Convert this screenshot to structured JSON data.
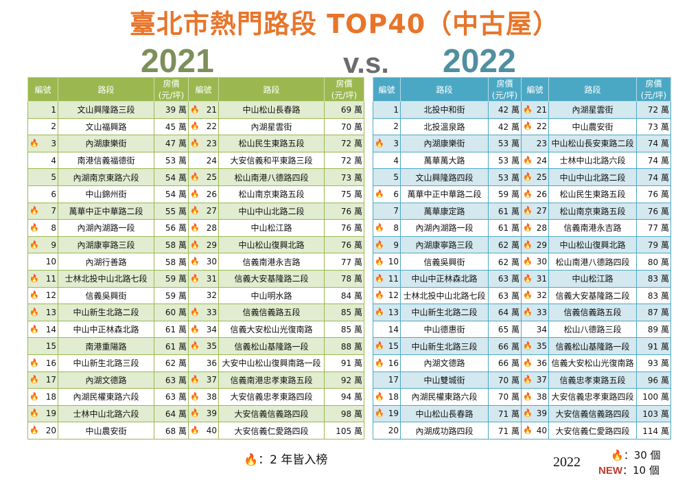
{
  "title": "臺北市熱門路段 TOP40（中古屋）",
  "year_left": "2021",
  "vs": "v.s.",
  "year_right": "2022",
  "headers": {
    "rank": "編號",
    "road": "路段",
    "price_line1": "房價",
    "price_line2": "(元/坪)"
  },
  "icons": {
    "flame": "flame-icon"
  },
  "legend_text": "：2 年皆入榜",
  "stats": {
    "year": "2022",
    "flame_count": "：30 個",
    "new_label": "NEW",
    "new_count": "：10 個"
  },
  "table2021": [
    {
      "l": {
        "r": "1",
        "f": false,
        "n": "文山興隆路三段",
        "p": "39 萬"
      },
      "r": {
        "r": "21",
        "f": true,
        "n": "中山松山長春路",
        "p": "69 萬"
      }
    },
    {
      "l": {
        "r": "2",
        "f": false,
        "n": "文山福興路",
        "p": "45 萬"
      },
      "r": {
        "r": "22",
        "f": true,
        "n": "內湖星雲街",
        "p": "70 萬"
      }
    },
    {
      "l": {
        "r": "3",
        "f": true,
        "n": "內湖康樂街",
        "p": "47 萬"
      },
      "r": {
        "r": "23",
        "f": true,
        "n": "松山民生東路五段",
        "p": "72 萬"
      }
    },
    {
      "l": {
        "r": "4",
        "f": false,
        "n": "南港信義福德街",
        "p": "53 萬"
      },
      "r": {
        "r": "24",
        "f": false,
        "n": "大安信義和平東路三段",
        "p": "72 萬"
      }
    },
    {
      "l": {
        "r": "5",
        "f": false,
        "n": "內湖南京東路六段",
        "p": "54 萬"
      },
      "r": {
        "r": "25",
        "f": true,
        "n": "松山南港八德路四段",
        "p": "73 萬"
      }
    },
    {
      "l": {
        "r": "6",
        "f": false,
        "n": "中山錦州街",
        "p": "54 萬"
      },
      "r": {
        "r": "26",
        "f": true,
        "n": "松山南京東路五段",
        "p": "75 萬"
      }
    },
    {
      "l": {
        "r": "7",
        "f": true,
        "n": "萬華中正中華路二段",
        "p": "55 萬"
      },
      "r": {
        "r": "27",
        "f": true,
        "n": "中山中山北路二段",
        "p": "76 萬"
      }
    },
    {
      "l": {
        "r": "8",
        "f": true,
        "n": "內湖內湖路一段",
        "p": "56 萬"
      },
      "r": {
        "r": "28",
        "f": true,
        "n": "中山松江路",
        "p": "76 萬"
      }
    },
    {
      "l": {
        "r": "9",
        "f": true,
        "n": "內湖康寧路三段",
        "p": "58 萬"
      },
      "r": {
        "r": "29",
        "f": true,
        "n": "中山松山復興北路",
        "p": "76 萬"
      }
    },
    {
      "l": {
        "r": "10",
        "f": false,
        "n": "內湖行善路",
        "p": "58 萬"
      },
      "r": {
        "r": "30",
        "f": true,
        "n": "信義南港永吉路",
        "p": "77 萬"
      }
    },
    {
      "l": {
        "r": "11",
        "f": true,
        "n": "士林北投中山北路七段",
        "p": "59 萬"
      },
      "r": {
        "r": "31",
        "f": true,
        "n": "信義大安基隆路二段",
        "p": "78 萬"
      }
    },
    {
      "l": {
        "r": "12",
        "f": true,
        "n": "信義吳興街",
        "p": "59 萬"
      },
      "r": {
        "r": "32",
        "f": false,
        "n": "中山明水路",
        "p": "84 萬"
      }
    },
    {
      "l": {
        "r": "13",
        "f": true,
        "n": "中山新生北路二段",
        "p": "60 萬"
      },
      "r": {
        "r": "33",
        "f": true,
        "n": "信義信義路五段",
        "p": "85 萬"
      }
    },
    {
      "l": {
        "r": "14",
        "f": true,
        "n": "中山中正林森北路",
        "p": "61 萬"
      },
      "r": {
        "r": "34",
        "f": true,
        "n": "信義大安松山光復南路",
        "p": "85 萬"
      }
    },
    {
      "l": {
        "r": "15",
        "f": false,
        "n": "南港重陽路",
        "p": "61 萬"
      },
      "r": {
        "r": "35",
        "f": true,
        "n": "信義松山基隆路一段",
        "p": "88 萬"
      }
    },
    {
      "l": {
        "r": "16",
        "f": true,
        "n": "中山新生北路三段",
        "p": "62 萬"
      },
      "r": {
        "r": "36",
        "f": false,
        "n": "大安中山松山復興南路一段",
        "p": "91 萬"
      }
    },
    {
      "l": {
        "r": "17",
        "f": true,
        "n": "內湖文德路",
        "p": "63 萬"
      },
      "r": {
        "r": "37",
        "f": true,
        "n": "信義南港忠孝東路五段",
        "p": "92 萬"
      }
    },
    {
      "l": {
        "r": "18",
        "f": true,
        "n": "內湖民權東路六段",
        "p": "63 萬"
      },
      "r": {
        "r": "38",
        "f": true,
        "n": "大安信義忠孝東路四段",
        "p": "94 萬"
      }
    },
    {
      "l": {
        "r": "19",
        "f": true,
        "n": "士林中山北路六段",
        "p": "64 萬"
      },
      "r": {
        "r": "39",
        "f": true,
        "n": "大安信義信義路四段",
        "p": "98 萬"
      }
    },
    {
      "l": {
        "r": "20",
        "f": true,
        "n": "中山農安街",
        "p": "68 萬"
      },
      "r": {
        "r": "40",
        "f": true,
        "n": "大安信義仁愛路四段",
        "p": "105 萬"
      }
    }
  ],
  "table2022": [
    {
      "l": {
        "r": "1",
        "f": false,
        "n": "北投中和街",
        "p": "42 萬"
      },
      "r": {
        "r": "21",
        "f": true,
        "n": "內湖星雲街",
        "p": "72 萬"
      }
    },
    {
      "l": {
        "r": "2",
        "f": false,
        "n": "北投溫泉路",
        "p": "42 萬"
      },
      "r": {
        "r": "22",
        "f": true,
        "n": "中山農安街",
        "p": "73 萬"
      }
    },
    {
      "l": {
        "r": "3",
        "f": true,
        "n": "內湖康樂街",
        "p": "53 萬"
      },
      "r": {
        "r": "23",
        "f": false,
        "n": "中山松山長安東路二段",
        "p": "74 萬"
      }
    },
    {
      "l": {
        "r": "4",
        "f": false,
        "n": "萬華萬大路",
        "p": "53 萬"
      },
      "r": {
        "r": "24",
        "f": true,
        "n": "士林中山北路六段",
        "p": "74 萬"
      }
    },
    {
      "l": {
        "r": "5",
        "f": false,
        "n": "文山興隆路四段",
        "p": "53 萬"
      },
      "r": {
        "r": "25",
        "f": true,
        "n": "中山中山北路二段",
        "p": "74 萬"
      }
    },
    {
      "l": {
        "r": "6",
        "f": true,
        "n": "萬華中正中華路二段",
        "p": "59 萬"
      },
      "r": {
        "r": "26",
        "f": true,
        "n": "松山民生東路五段",
        "p": "76 萬"
      }
    },
    {
      "l": {
        "r": "7",
        "f": false,
        "n": "萬華康定路",
        "p": "61 萬"
      },
      "r": {
        "r": "27",
        "f": true,
        "n": "松山南京東路五段",
        "p": "76 萬"
      }
    },
    {
      "l": {
        "r": "8",
        "f": true,
        "n": "內湖內湖路一段",
        "p": "61 萬"
      },
      "r": {
        "r": "28",
        "f": true,
        "n": "信義南港永吉路",
        "p": "77 萬"
      }
    },
    {
      "l": {
        "r": "9",
        "f": true,
        "n": "內湖康寧路三段",
        "p": "62 萬"
      },
      "r": {
        "r": "29",
        "f": true,
        "n": "中山松山復興北路",
        "p": "79 萬"
      }
    },
    {
      "l": {
        "r": "10",
        "f": true,
        "n": "信義吳興街",
        "p": "62 萬"
      },
      "r": {
        "r": "30",
        "f": true,
        "n": "松山南港八德路四段",
        "p": "80 萬"
      }
    },
    {
      "l": {
        "r": "11",
        "f": true,
        "n": "中山中正林森北路",
        "p": "63 萬"
      },
      "r": {
        "r": "31",
        "f": true,
        "n": "中山松江路",
        "p": "83 萬"
      }
    },
    {
      "l": {
        "r": "12",
        "f": true,
        "n": "士林北投中山北路七段",
        "p": "63 萬"
      },
      "r": {
        "r": "32",
        "f": true,
        "n": "信義大安基隆路二段",
        "p": "83 萬"
      }
    },
    {
      "l": {
        "r": "13",
        "f": true,
        "n": "中山新生北路二段",
        "p": "64 萬"
      },
      "r": {
        "r": "33",
        "f": true,
        "n": "信義信義路五段",
        "p": "87 萬"
      }
    },
    {
      "l": {
        "r": "14",
        "f": false,
        "n": "中山德惠街",
        "p": "65 萬"
      },
      "r": {
        "r": "34",
        "f": false,
        "n": "松山八德路三段",
        "p": "89 萬"
      }
    },
    {
      "l": {
        "r": "15",
        "f": true,
        "n": "中山新生北路三段",
        "p": "66 萬"
      },
      "r": {
        "r": "35",
        "f": true,
        "n": "信義松山基隆路一段",
        "p": "91 萬"
      }
    },
    {
      "l": {
        "r": "16",
        "f": true,
        "n": "內湖文德路",
        "p": "66 萬"
      },
      "r": {
        "r": "36",
        "f": true,
        "n": "信義大安松山光復南路",
        "p": "93 萬"
      }
    },
    {
      "l": {
        "r": "17",
        "f": false,
        "n": "中山雙城街",
        "p": "70 萬"
      },
      "r": {
        "r": "37",
        "f": true,
        "n": "信義忠孝東路五段",
        "p": "96 萬"
      }
    },
    {
      "l": {
        "r": "18",
        "f": true,
        "n": "內湖民權東路六段",
        "p": "70 萬"
      },
      "r": {
        "r": "38",
        "f": true,
        "n": "大安信義忠孝東路四段",
        "p": "100 萬"
      }
    },
    {
      "l": {
        "r": "19",
        "f": true,
        "n": "中山松山長春路",
        "p": "71 萬"
      },
      "r": {
        "r": "39",
        "f": true,
        "n": "大安信義信義路四段",
        "p": "103 萬"
      }
    },
    {
      "l": {
        "r": "20",
        "f": false,
        "n": "內湖成功路四段",
        "p": "71 萬"
      },
      "r": {
        "r": "40",
        "f": true,
        "n": "大安信義仁愛路四段",
        "p": "114 萬"
      }
    }
  ]
}
